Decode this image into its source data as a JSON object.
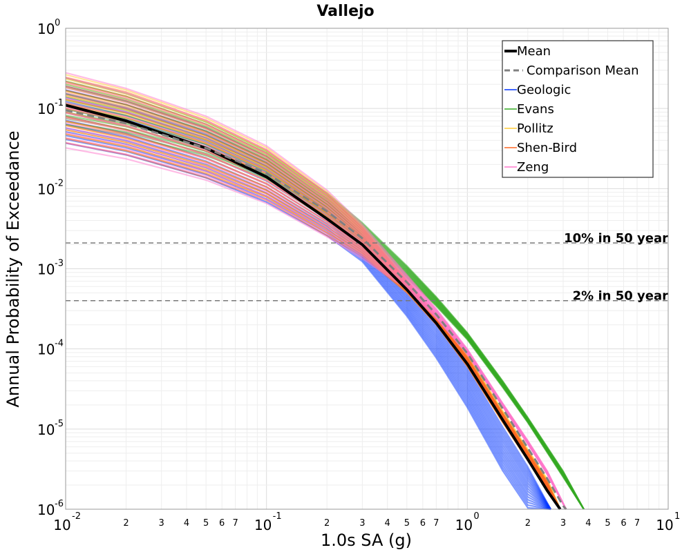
{
  "chart_data": {
    "type": "line",
    "title": "Vallejo",
    "xlabel": "1.0s SA (g)",
    "ylabel": "Annual Probability of Exceedance",
    "x_scale": "log",
    "y_scale": "log",
    "xlim": [
      0.01,
      10
    ],
    "ylim": [
      1e-06,
      1
    ],
    "grid": true,
    "legend_position": "top-right",
    "x_major_ticks": [
      {
        "value": 0.01,
        "base": "10",
        "exp": "-2"
      },
      {
        "value": 0.1,
        "base": "10",
        "exp": "-1"
      },
      {
        "value": 1,
        "base": "10",
        "exp": "0"
      },
      {
        "value": 10,
        "base": "10",
        "exp": "1"
      }
    ],
    "x_minor_labels": [
      "2",
      "3",
      "4",
      "5",
      "6",
      "7"
    ],
    "y_major_ticks": [
      {
        "value": 1,
        "base": "10",
        "exp": "0"
      },
      {
        "value": 0.1,
        "base": "10",
        "exp": "-1"
      },
      {
        "value": 0.01,
        "base": "10",
        "exp": "-2"
      },
      {
        "value": 0.001,
        "base": "10",
        "exp": "-3"
      },
      {
        "value": 0.0001,
        "base": "10",
        "exp": "-4"
      },
      {
        "value": 1e-05,
        "base": "10",
        "exp": "-5"
      },
      {
        "value": 1e-06,
        "base": "10",
        "exp": "-6"
      }
    ],
    "reference_lines": [
      {
        "label": "10% in 50 year",
        "y": 0.0021
      },
      {
        "label": "2% in 50 year",
        "y": 0.0004
      }
    ],
    "series": [
      {
        "name": "Mean",
        "color": "#000000",
        "style": "solid",
        "x": [
          0.01,
          0.02,
          0.05,
          0.1,
          0.2,
          0.3,
          0.5,
          0.7,
          1,
          1.5,
          2,
          2.5,
          2.9
        ],
        "y": [
          0.11,
          0.07,
          0.032,
          0.014,
          0.0042,
          0.002,
          0.00055,
          0.00021,
          6.5e-05,
          1.3e-05,
          4.2e-06,
          1.7e-06,
          1e-06
        ]
      },
      {
        "name": "Comparison Mean",
        "color": "#808080",
        "style": "dashed",
        "x": [
          0.01,
          0.02,
          0.05,
          0.1,
          0.2,
          0.3,
          0.5,
          0.7,
          1,
          1.5,
          2,
          2.5,
          3,
          3.1
        ],
        "y": [
          0.095,
          0.065,
          0.032,
          0.0155,
          0.0052,
          0.0024,
          0.00068,
          0.00027,
          8.8e-05,
          1.8e-05,
          5.8e-06,
          2.4e-06,
          1.1e-06,
          1e-06
        ]
      },
      {
        "name": "Geologic",
        "color": "#0033ff",
        "style": "band",
        "x": [
          0.01,
          0.02,
          0.05,
          0.1,
          0.2,
          0.3,
          0.5,
          0.7,
          1,
          1.5,
          2,
          2.6
        ],
        "y_low": [
          0.035,
          0.025,
          0.013,
          0.0065,
          0.0025,
          0.0012,
          0.00025,
          7.5e-05,
          1.8e-05,
          2.9e-06,
          1e-06,
          1e-06
        ],
        "y_high": [
          0.2,
          0.13,
          0.06,
          0.026,
          0.0075,
          0.0027,
          0.0006,
          0.00022,
          6e-05,
          1.1e-05,
          3.5e-06,
          1e-06
        ]
      },
      {
        "name": "Evans",
        "color": "#33aa22",
        "style": "band",
        "x": [
          0.01,
          0.02,
          0.05,
          0.1,
          0.2,
          0.3,
          0.5,
          0.7,
          1,
          1.5,
          2,
          3,
          3.8
        ],
        "y_low": [
          0.06,
          0.045,
          0.025,
          0.013,
          0.0045,
          0.0022,
          0.00075,
          0.00034,
          0.00013,
          3.3e-05,
          1.2e-05,
          2.5e-06,
          1e-06
        ],
        "y_high": [
          0.25,
          0.16,
          0.07,
          0.03,
          0.009,
          0.0038,
          0.0011,
          0.00045,
          0.00016,
          4e-05,
          1.4e-05,
          3e-06,
          1e-06
        ]
      },
      {
        "name": "Pollitz",
        "color": "#ffcc33",
        "style": "band",
        "x": [
          0.01,
          0.02,
          0.05,
          0.1,
          0.2,
          0.3,
          0.5,
          0.7,
          1,
          1.5,
          2,
          2.5,
          2.9
        ],
        "y_low": [
          0.04,
          0.028,
          0.015,
          0.0075,
          0.0027,
          0.0015,
          0.0005,
          0.0002,
          6e-05,
          1.2e-05,
          4.2e-06,
          1.8e-06,
          1e-06
        ],
        "y_high": [
          0.28,
          0.18,
          0.08,
          0.034,
          0.0095,
          0.0035,
          0.00075,
          0.00027,
          8.5e-05,
          1.7e-05,
          5.6e-06,
          2.4e-06,
          1e-06
        ]
      },
      {
        "name": "Shen-Bird",
        "color": "#ff6622",
        "style": "band",
        "x": [
          0.01,
          0.02,
          0.05,
          0.1,
          0.2,
          0.3,
          0.5,
          0.7,
          1,
          1.5,
          2,
          2.5,
          2.9
        ],
        "y_low": [
          0.035,
          0.025,
          0.013,
          0.0068,
          0.0025,
          0.0014,
          0.0005,
          0.0002,
          6e-05,
          1.2e-05,
          4e-06,
          1.7e-06,
          1e-06
        ],
        "y_high": [
          0.26,
          0.17,
          0.075,
          0.032,
          0.009,
          0.0034,
          0.00072,
          0.00026,
          8e-05,
          1.6e-05,
          5.3e-06,
          2.2e-06,
          1e-06
        ]
      },
      {
        "name": "Zeng",
        "color": "#ff77cc",
        "style": "band",
        "x": [
          0.01,
          0.02,
          0.05,
          0.1,
          0.2,
          0.3,
          0.5,
          0.7,
          1,
          1.5,
          2,
          2.5,
          3.1
        ],
        "y_low": [
          0.03,
          0.022,
          0.012,
          0.0062,
          0.0024,
          0.0013,
          0.00055,
          0.00024,
          8.5e-05,
          1.9e-05,
          6.5e-06,
          2.7e-06,
          1e-06
        ],
        "y_high": [
          0.3,
          0.19,
          0.085,
          0.036,
          0.01,
          0.0037,
          0.00085,
          0.00032,
          0.0001,
          2.1e-05,
          7.2e-06,
          3e-06,
          1e-06
        ]
      }
    ]
  }
}
